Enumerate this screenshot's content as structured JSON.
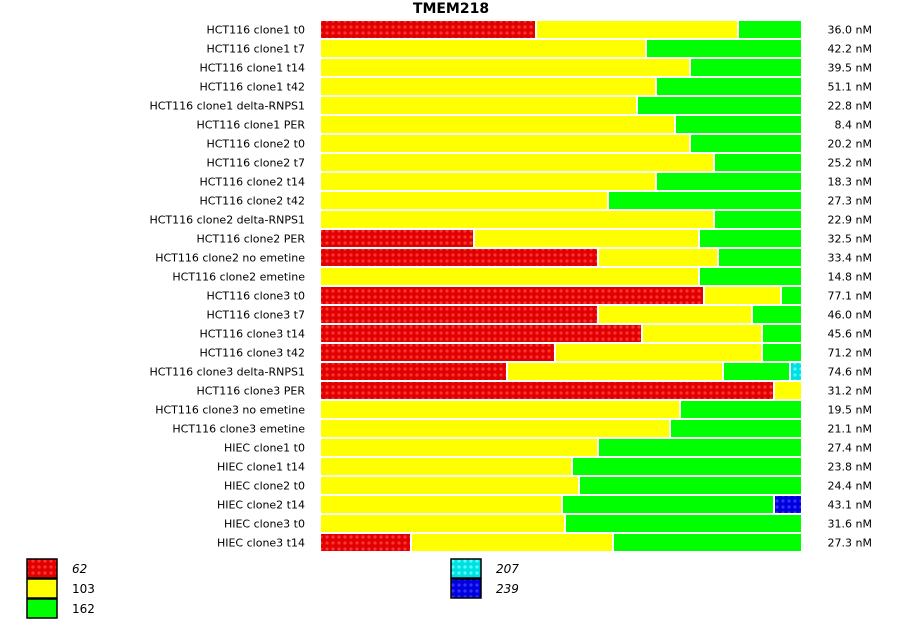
{
  "chart_data": {
    "type": "bar",
    "orientation": "horizontal-stacked-normalized",
    "title": "TMEM218",
    "categories": [
      "HCT116 clone1 t0",
      "HCT116 clone1 t7",
      "HCT116 clone1 t14",
      "HCT116 clone1 t42",
      "HCT116 clone1 delta-RNPS1",
      "HCT116 clone1 PER",
      "HCT116 clone2 t0",
      "HCT116 clone2 t7",
      "HCT116 clone2 t14",
      "HCT116 clone2 t42",
      "HCT116 clone2 delta-RNPS1",
      "HCT116 clone2 PER",
      "HCT116 clone2 no emetine",
      "HCT116 clone2 emetine",
      "HCT116 clone3 t0",
      "HCT116 clone3 t7",
      "HCT116 clone3 t14",
      "HCT116 clone3 t42",
      "HCT116 clone3 delta-RNPS1",
      "HCT116 clone3 PER",
      "HCT116 clone3 no emetine",
      "HCT116 clone3 emetine",
      "HIEC clone1 t0",
      "HIEC clone1 t14",
      "HIEC clone2 t0",
      "HIEC clone2 t14",
      "HIEC clone3 t0",
      "HIEC clone3 t14"
    ],
    "totals": [
      "36.0 nM",
      "42.2 nM",
      "39.5 nM",
      "51.1 nM",
      "22.8 nM",
      "8.4 nM",
      "20.2 nM",
      "25.2 nM",
      "18.3 nM",
      "27.3 nM",
      "22.9 nM",
      "32.5 nM",
      "33.4 nM",
      "14.8 nM",
      "77.1 nM",
      "46.0 nM",
      "45.6 nM",
      "71.2 nM",
      "74.6 nM",
      "31.2 nM",
      "19.5 nM",
      "21.1 nM",
      "27.4 nM",
      "23.8 nM",
      "24.4 nM",
      "43.1 nM",
      "31.6 nM",
      "27.3 nM"
    ],
    "series": [
      {
        "name": "62",
        "color": "#ee0000",
        "pattern": true,
        "italic": true,
        "values": [
          0.45,
          0,
          0,
          0,
          0,
          0,
          0,
          0,
          0,
          0,
          0,
          0.32,
          0.58,
          0,
          0.8,
          0.58,
          0.67,
          0.49,
          0.39,
          0.945,
          0,
          0,
          0,
          0,
          0,
          0,
          0,
          0.19
        ]
      },
      {
        "name": "103",
        "color": "#ffff00",
        "pattern": false,
        "italic": false,
        "values": [
          0.42,
          0.68,
          0.77,
          0.7,
          0.66,
          0.74,
          0.77,
          0.82,
          0.7,
          0.6,
          0.82,
          0.47,
          0.25,
          0.79,
          0.16,
          0.32,
          0.25,
          0.43,
          0.45,
          0.055,
          0.75,
          0.73,
          0.58,
          0.525,
          0.54,
          0.505,
          0.51,
          0.42
        ]
      },
      {
        "name": "162",
        "color": "#00ff00",
        "pattern": false,
        "italic": false,
        "values": [
          0.13,
          0.32,
          0.23,
          0.3,
          0.34,
          0.26,
          0.23,
          0.18,
          0.3,
          0.4,
          0.18,
          0.21,
          0.17,
          0.21,
          0.04,
          0.1,
          0.08,
          0.08,
          0.14,
          0,
          0.25,
          0.27,
          0.42,
          0.475,
          0.46,
          0.44,
          0.49,
          0.39
        ]
      },
      {
        "name": "207",
        "color": "#00eeee",
        "pattern": true,
        "italic": true,
        "values": [
          0,
          0,
          0,
          0,
          0,
          0,
          0,
          0,
          0,
          0,
          0,
          0,
          0,
          0,
          0,
          0,
          0,
          0,
          0.02,
          0,
          0,
          0,
          0,
          0,
          0,
          0,
          0,
          0
        ]
      },
      {
        "name": "239",
        "color": "#0000ee",
        "pattern": true,
        "italic": true,
        "values": [
          0,
          0,
          0,
          0,
          0,
          0,
          0,
          0,
          0,
          0,
          0,
          0,
          0,
          0,
          0,
          0,
          0,
          0,
          0,
          0,
          0,
          0,
          0,
          0,
          0,
          0.055,
          0,
          0
        ]
      }
    ],
    "xlim": [
      0,
      1
    ],
    "grid": false,
    "legend_position": "bottom-left"
  }
}
